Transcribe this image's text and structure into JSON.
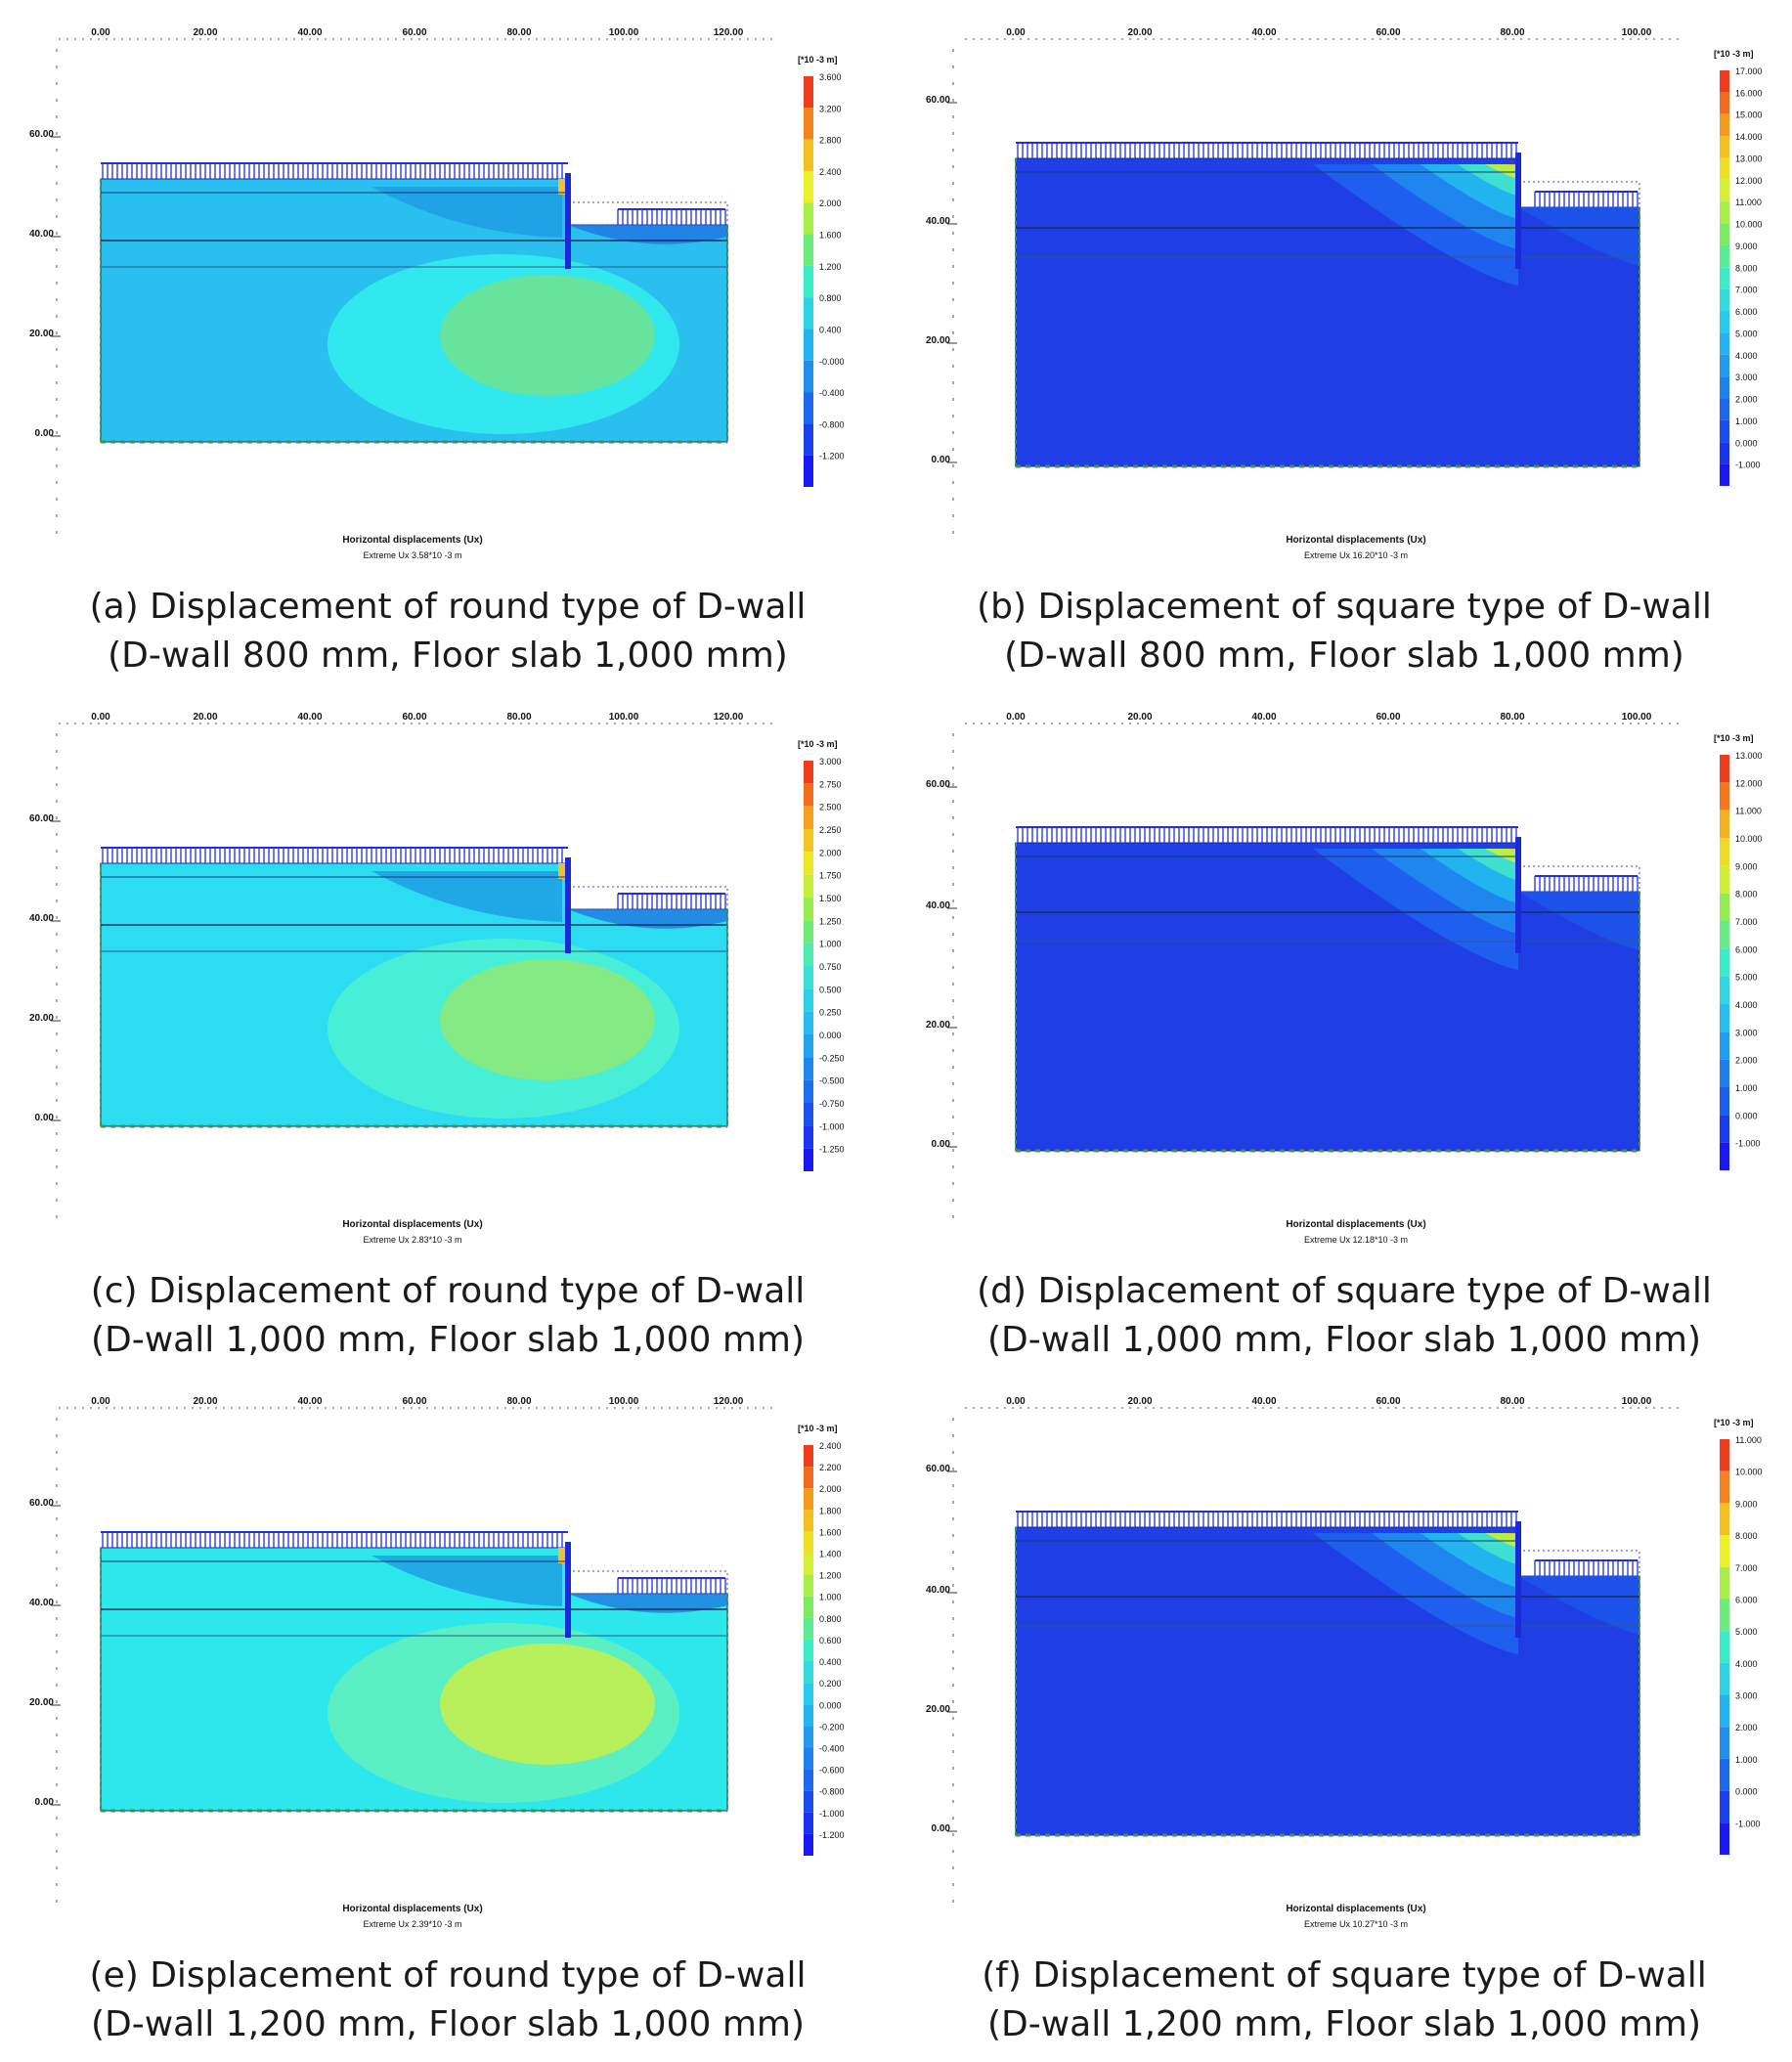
{
  "figure": {
    "panels": [
      {
        "id": "a",
        "model": "round",
        "x_ticks": [
          "0.00",
          "20.00",
          "40.00",
          "60.00",
          "80.00",
          "100.00",
          "120.00"
        ],
        "y_ticks": [
          "60.00",
          "40.00",
          "20.00",
          "0.00"
        ],
        "unit": "[*10 -3 m]",
        "legend": [
          "3.600",
          "3.200",
          "2.800",
          "2.400",
          "2.000",
          "1.600",
          "1.200",
          "0.800",
          "0.400",
          "-0.000",
          "-0.400",
          "-0.800",
          "-1.200"
        ],
        "title": "Horizontal displacements (Ux)",
        "extreme": "Extreme Ux 3.58*10 -3 m",
        "caption_line1": "(a) Displacement of round type of D-wall",
        "caption_line2": "(D-wall 800 mm, Floor slab 1,000 mm)",
        "colors": {
          "soil": "#29bfef",
          "mid": "#31e8ee",
          "core": "#66e39c"
        }
      },
      {
        "id": "b",
        "model": "square",
        "x_ticks": [
          "0.00",
          "20.00",
          "40.00",
          "60.00",
          "80.00",
          "100.00"
        ],
        "y_ticks": [
          "60.00",
          "40.00",
          "20.00",
          "0.00"
        ],
        "unit": "[*10 -3 m]",
        "legend": [
          "17.000",
          "16.000",
          "15.000",
          "14.000",
          "13.000",
          "12.000",
          "11.000",
          "10.000",
          "9.000",
          "8.000",
          "7.000",
          "6.000",
          "5.000",
          "4.000",
          "3.000",
          "2.000",
          "1.000",
          "0.000",
          "-1.000"
        ],
        "title": "Horizontal displacements (Ux)",
        "extreme": "Extreme Ux 16.20*10 -3 m",
        "caption_line1": "(b) Displacement of square type of D-wall",
        "caption_line2": "(D-wall 800 mm, Floor slab 1,000 mm)",
        "colors": {
          "soil": "#1f3ee6"
        }
      },
      {
        "id": "c",
        "model": "round",
        "x_ticks": [
          "0.00",
          "20.00",
          "40.00",
          "60.00",
          "80.00",
          "100.00",
          "120.00"
        ],
        "y_ticks": [
          "60.00",
          "40.00",
          "20.00",
          "0.00"
        ],
        "unit": "[*10 -3 m]",
        "legend": [
          "3.000",
          "2.750",
          "2.500",
          "2.250",
          "2.000",
          "1.750",
          "1.500",
          "1.250",
          "1.000",
          "0.750",
          "0.500",
          "0.250",
          "0.000",
          "-0.250",
          "-0.500",
          "-0.750",
          "-1.000",
          "-1.250"
        ],
        "title": "Horizontal displacements (Ux)",
        "extreme": "Extreme Ux 2.83*10 -3 m",
        "caption_line1": "(c) Displacement of round type of D-wall",
        "caption_line2": "(D-wall 1,000 mm, Floor slab 1,000 mm)",
        "colors": {
          "soil": "#2cdcf0",
          "mid": "#46efd6",
          "core": "#86ea84"
        }
      },
      {
        "id": "d",
        "model": "square",
        "x_ticks": [
          "0.00",
          "20.00",
          "40.00",
          "60.00",
          "80.00",
          "100.00"
        ],
        "y_ticks": [
          "60.00",
          "40.00",
          "20.00",
          "0.00"
        ],
        "unit": "[*10 -3 m]",
        "legend": [
          "13.000",
          "12.000",
          "11.000",
          "10.000",
          "9.000",
          "8.000",
          "7.000",
          "6.000",
          "5.000",
          "4.000",
          "3.000",
          "2.000",
          "1.000",
          "0.000",
          "-1.000"
        ],
        "title": "Horizontal displacements (Ux)",
        "extreme": "Extreme Ux 12.18*10 -3 m",
        "caption_line1": "(d) Displacement of square type of D-wall",
        "caption_line2": "(D-wall 1,000 mm, Floor slab 1,000 mm)",
        "colors": {
          "soil": "#1f3ee6"
        }
      },
      {
        "id": "e",
        "model": "round",
        "x_ticks": [
          "0.00",
          "20.00",
          "40.00",
          "60.00",
          "80.00",
          "100.00",
          "120.00"
        ],
        "y_ticks": [
          "60.00",
          "40.00",
          "20.00",
          "0.00"
        ],
        "unit": "[*10 -3 m]",
        "legend": [
          "2.400",
          "2.200",
          "2.000",
          "1.800",
          "1.600",
          "1.400",
          "1.200",
          "1.000",
          "0.800",
          "0.600",
          "0.400",
          "0.200",
          "0.000",
          "-0.200",
          "-0.400",
          "-0.600",
          "-0.800",
          "-1.000",
          "-1.200"
        ],
        "title": "Horizontal displacements (Ux)",
        "extreme": "Extreme Ux 2.39*10 -3 m",
        "caption_line1": "(e) Displacement of round type of D-wall",
        "caption_line2": "(D-wall 1,200 mm, Floor slab 1,000 mm)",
        "colors": {
          "soil": "#2ce8ec",
          "mid": "#5af0c4",
          "core": "#b8f05c"
        }
      },
      {
        "id": "f",
        "model": "square",
        "x_ticks": [
          "0.00",
          "20.00",
          "40.00",
          "60.00",
          "80.00",
          "100.00"
        ],
        "y_ticks": [
          "60.00",
          "40.00",
          "20.00",
          "0.00"
        ],
        "unit": "[*10 -3 m]",
        "legend": [
          "11.000",
          "10.000",
          "9.000",
          "8.000",
          "7.000",
          "6.000",
          "5.000",
          "4.000",
          "3.000",
          "2.000",
          "1.000",
          "0.000",
          "-1.000"
        ],
        "title": "Horizontal displacements (Ux)",
        "extreme": "Extreme Ux 10.27*10 -3 m",
        "caption_line1": "(f) Displacement of square type of D-wall",
        "caption_line2": "(D-wall 1,200 mm, Floor slab 1,000 mm)",
        "colors": {
          "soil": "#1f3ee6"
        }
      }
    ]
  }
}
